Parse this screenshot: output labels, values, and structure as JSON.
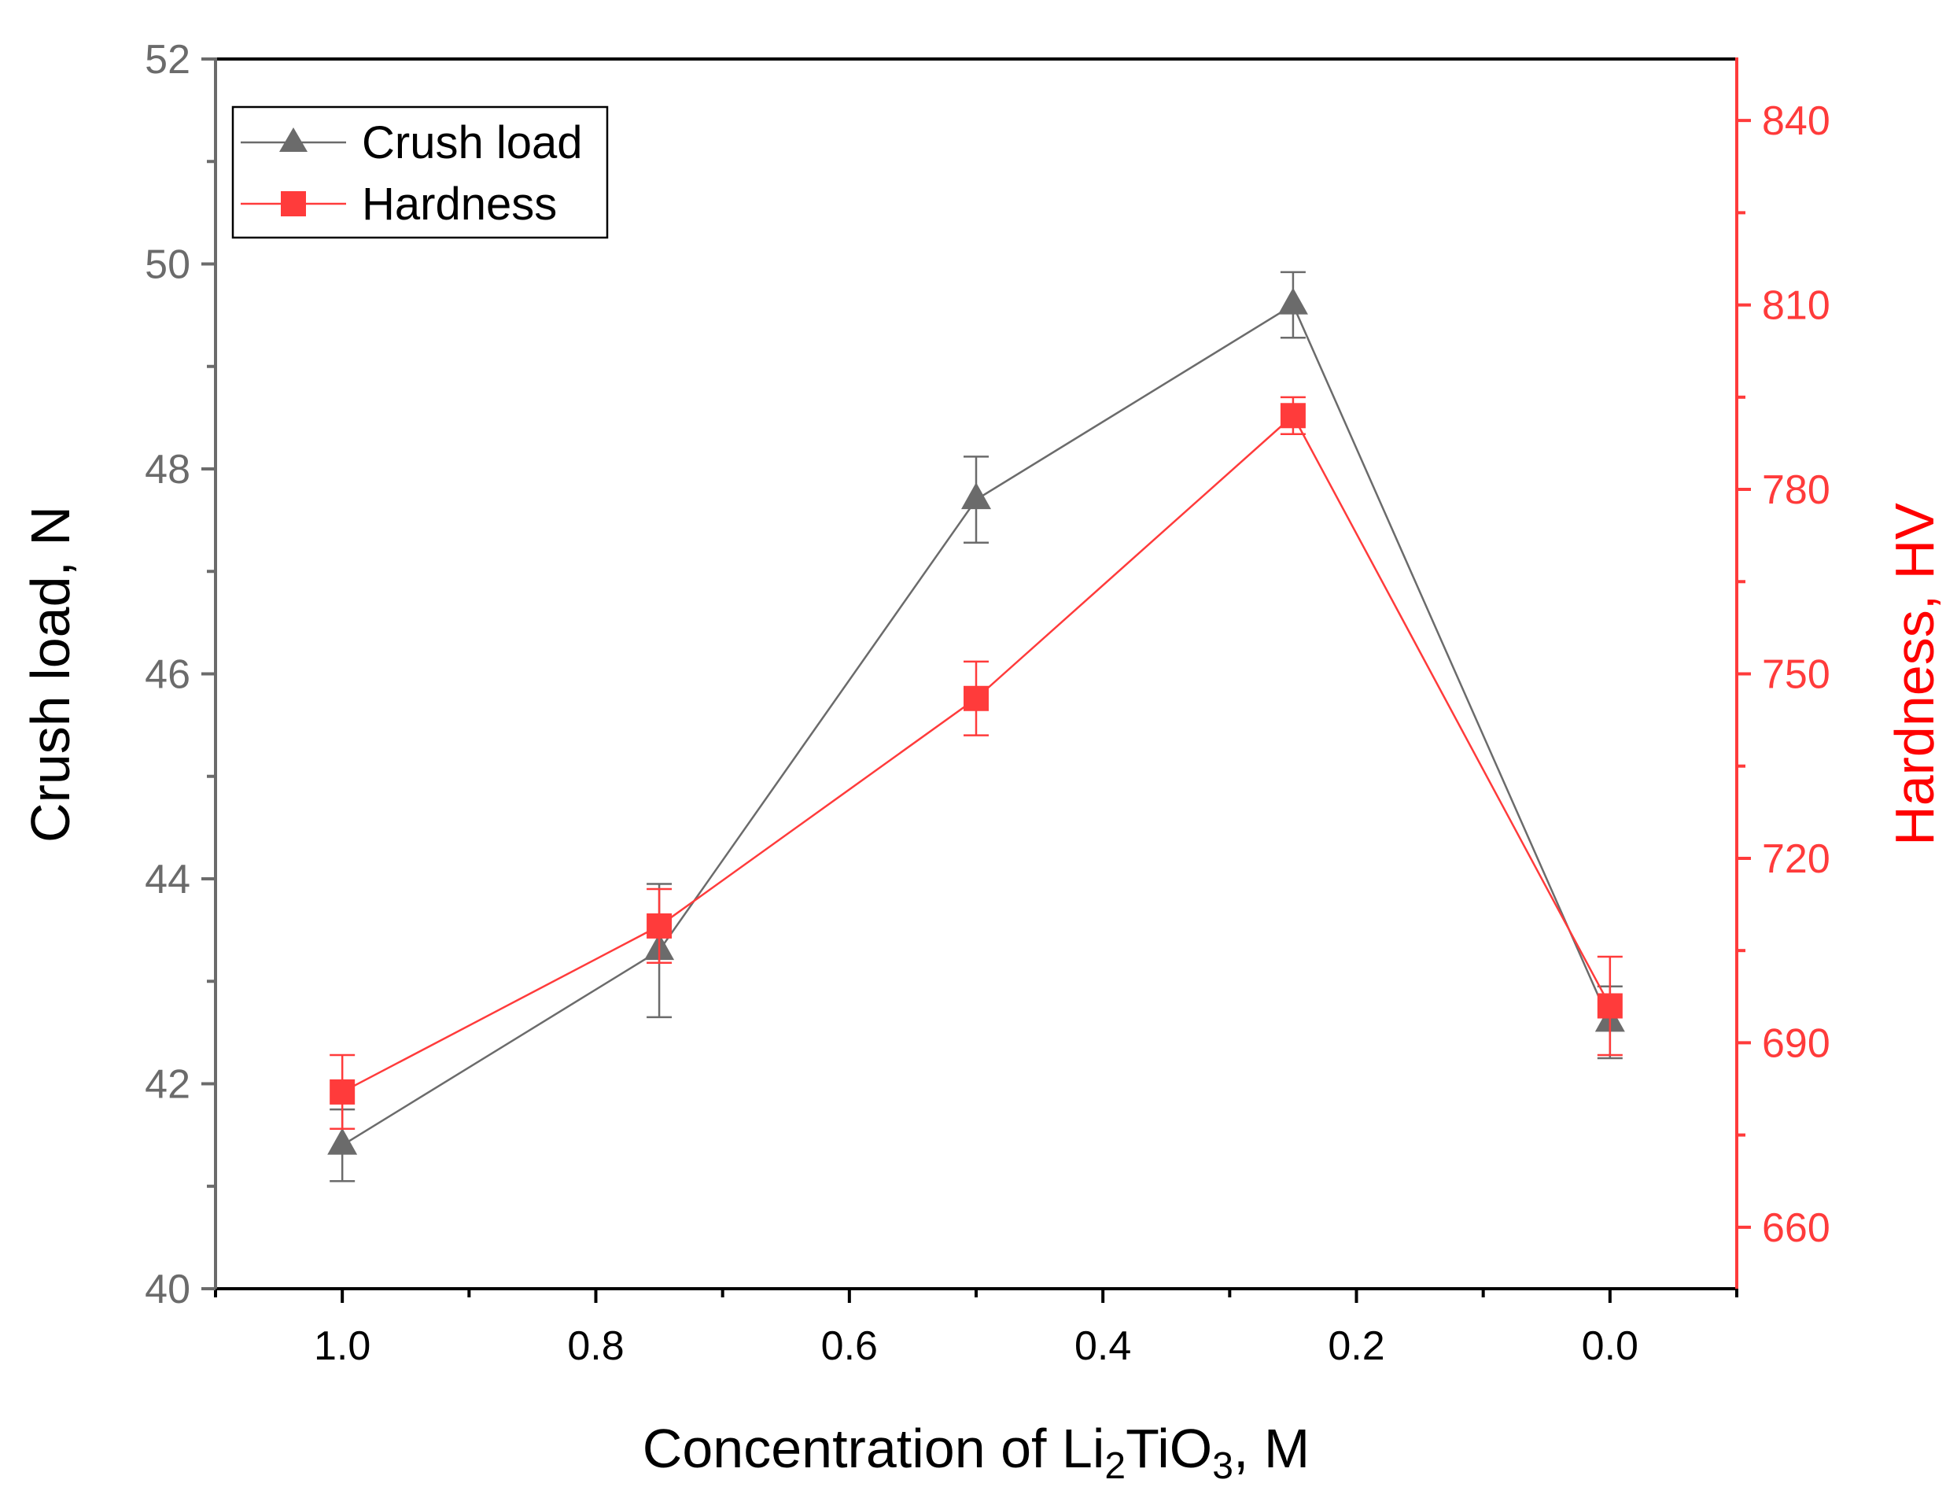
{
  "chart_data": {
    "type": "line",
    "title": "",
    "xlabel_main": "Concentration of Li",
    "xlabel_sub1": "2",
    "xlabel_mid": "TiO",
    "xlabel_sub2": "3",
    "xlabel_end": ", M",
    "ylabel_left": "Crush load, N",
    "ylabel_right": "Hardness, HV",
    "x_reversed": true,
    "xlim": [
      -0.1,
      1.1
    ],
    "ylim_left": [
      40,
      52
    ],
    "ylim_right": [
      650,
      850
    ],
    "x_ticks": [
      1.0,
      0.8,
      0.6,
      0.4,
      0.2,
      0.0
    ],
    "x_tick_labels": [
      "1.0",
      "0.8",
      "0.6",
      "0.4",
      "0.2",
      "0.0"
    ],
    "x_minor_ticks": [
      1.1,
      0.9,
      0.7,
      0.5,
      0.3,
      0.1,
      -0.1
    ],
    "y_left_ticks": [
      40,
      42,
      44,
      46,
      48,
      50,
      52
    ],
    "y_left_tick_labels": [
      "40",
      "42",
      "44",
      "46",
      "48",
      "50",
      "52"
    ],
    "y_left_minor_ticks": [
      41,
      43,
      45,
      47,
      49,
      51
    ],
    "y_right_ticks": [
      660,
      690,
      720,
      750,
      780,
      810,
      840
    ],
    "y_right_tick_labels": [
      "660",
      "690",
      "720",
      "750",
      "780",
      "810",
      "840"
    ],
    "y_right_minor_ticks": [
      675,
      705,
      735,
      765,
      795,
      825
    ],
    "legend": {
      "position": "top-left",
      "entries": [
        "Crush load",
        "Hardness"
      ]
    },
    "series": [
      {
        "name": "Crush load",
        "axis": "left",
        "marker": "triangle",
        "color": "#6b6b6b",
        "x": [
          1.0,
          0.75,
          0.5,
          0.25,
          0.0
        ],
        "y": [
          41.4,
          43.3,
          47.7,
          49.6,
          42.6
        ],
        "err": [
          0.35,
          0.65,
          0.42,
          0.32,
          0.35
        ]
      },
      {
        "name": "Hardness",
        "axis": "right",
        "marker": "square",
        "color": "#ff3b3b",
        "x": [
          1.0,
          0.75,
          0.5,
          0.25,
          0.0
        ],
        "y": [
          682,
          709,
          746,
          792,
          696
        ],
        "err": [
          6,
          6,
          6,
          3,
          8
        ]
      }
    ]
  },
  "colors": {
    "left_axis": "#6b6b6b",
    "right_axis": "#ff3b3b",
    "right_label": "#ff0000",
    "frame": "#000000"
  }
}
